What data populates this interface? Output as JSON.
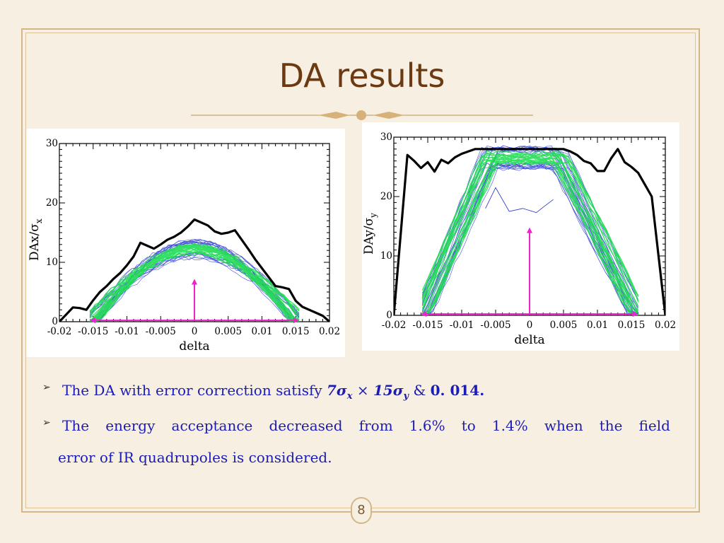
{
  "slide": {
    "title": "DA results",
    "page_number": "8"
  },
  "bullets": {
    "b1_prefix": "The DA with error correction satisfy",
    "b1_formula_a": "7σ",
    "b1_sub_a": "x",
    "b1_times": "×",
    "b1_formula_b": "15σ",
    "b1_sub_b": "y",
    "b1_amp": "&",
    "b1_value": "0. 014.",
    "b2_words": [
      "The",
      "energy",
      "acceptance",
      "decreased",
      "from",
      "1.6%",
      "to",
      "1.4%",
      "when",
      "the",
      "field"
    ],
    "b3": "error of IR quadrupoles is considered."
  },
  "colors": {
    "background": "#f7efe1",
    "title": "#6b3a12",
    "bullet_text": "#1c1cb4",
    "envelope": "#000000",
    "blue_lines": "#2233cc",
    "green_core": "#22dd55",
    "arrow": "#ee22cc"
  },
  "chart_data": [
    {
      "type": "line",
      "xlabel": "delta",
      "ylabel": "DAx/σ",
      "ylabel_sub": "x",
      "xlim": [
        -0.02,
        0.02
      ],
      "ylim": [
        0,
        30
      ],
      "x_ticks": [
        "-0.02",
        "-0.015",
        "-0.01",
        "-0.005",
        "0",
        "0.005",
        "0.01",
        "0.015",
        "0.02"
      ],
      "y_ticks": [
        "0",
        "10",
        "20",
        "30"
      ],
      "envelope": {
        "x": [
          -0.02,
          -0.019,
          -0.018,
          -0.017,
          -0.016,
          -0.015,
          -0.014,
          -0.013,
          -0.012,
          -0.011,
          -0.01,
          -0.009,
          -0.008,
          -0.007,
          -0.006,
          -0.005,
          -0.004,
          -0.003,
          -0.002,
          -0.001,
          0.0,
          0.001,
          0.002,
          0.003,
          0.004,
          0.005,
          0.006,
          0.007,
          0.008,
          0.009,
          0.01,
          0.011,
          0.012,
          0.013,
          0.014,
          0.015,
          0.016,
          0.017,
          0.018,
          0.019,
          0.02
        ],
        "y": [
          0,
          1.2,
          2.4,
          2.3,
          2.0,
          3.6,
          5.0,
          6.0,
          7.2,
          8.2,
          9.5,
          11.0,
          13.3,
          12.8,
          12.3,
          13.0,
          13.8,
          14.3,
          15.0,
          16.0,
          17.2,
          16.7,
          16.2,
          15.2,
          14.8,
          15.0,
          15.4,
          13.8,
          12.2,
          10.5,
          9.0,
          7.5,
          6.0,
          5.8,
          5.5,
          3.5,
          2.5,
          2.0,
          1.5,
          1.0,
          0.0
        ]
      },
      "band": {
        "x_start": -0.0155,
        "x_end": 0.0155,
        "peak_center": 12.3,
        "peak_spread": 1.6
      },
      "annotation_arrow": {
        "x": 0.0,
        "y_from": 0.3,
        "y_to": 7.2
      },
      "xlim_arrow": {
        "x_from": -0.0155,
        "x_to": 0.0155,
        "y": 0.1
      }
    },
    {
      "type": "line",
      "xlabel": "delta",
      "ylabel": "DAy/σ",
      "ylabel_sub": "y",
      "xlim": [
        -0.02,
        0.02
      ],
      "ylim": [
        0,
        30
      ],
      "x_ticks": [
        "-0.02",
        "-0.015",
        "-0.01",
        "-0.005",
        "0",
        "0.005",
        "0.01",
        "0.015",
        "0.02"
      ],
      "y_ticks": [
        "0",
        "10",
        "20",
        "30"
      ],
      "envelope": {
        "x": [
          -0.02,
          -0.018,
          -0.017,
          -0.016,
          -0.015,
          -0.014,
          -0.013,
          -0.012,
          -0.011,
          -0.01,
          -0.009,
          -0.008,
          -0.007,
          -0.006,
          -0.005,
          -0.004,
          -0.003,
          -0.002,
          -0.001,
          0.0,
          0.001,
          0.002,
          0.003,
          0.004,
          0.005,
          0.006,
          0.007,
          0.008,
          0.009,
          0.01,
          0.011,
          0.012,
          0.013,
          0.014,
          0.015,
          0.016,
          0.017,
          0.018,
          0.019,
          0.02
        ],
        "y": [
          0,
          27.0,
          26.0,
          24.8,
          25.8,
          24.2,
          26.2,
          25.6,
          26.6,
          27.2,
          27.6,
          28.0,
          28.0,
          28.0,
          28.0,
          28.0,
          28.0,
          28.0,
          28.0,
          28.0,
          28.0,
          28.0,
          28.0,
          28.0,
          28.0,
          27.6,
          27.0,
          26.0,
          25.6,
          24.3,
          24.3,
          26.4,
          28.0,
          25.8,
          25.0,
          24.0,
          22.0,
          20.0,
          10.0,
          0.0
        ]
      },
      "band": {
        "x_start": -0.0158,
        "x_end": 0.016,
        "plateau_left": -0.0058,
        "plateau_right": 0.0045,
        "plateau_value": 26.5,
        "plateau_spread": 1.8
      },
      "dip_series": {
        "x": [
          -0.0065,
          -0.005,
          -0.003,
          -0.001,
          0.001,
          0.002,
          0.0035
        ],
        "y": [
          18.0,
          21.5,
          17.5,
          18.0,
          17.3,
          18.2,
          19.5
        ]
      },
      "annotation_arrow": {
        "x": 0.0,
        "y_from": 0.3,
        "y_to": 14.8
      },
      "xlim_arrow": {
        "x_from": -0.016,
        "x_to": 0.016,
        "y": 0.1
      }
    }
  ]
}
